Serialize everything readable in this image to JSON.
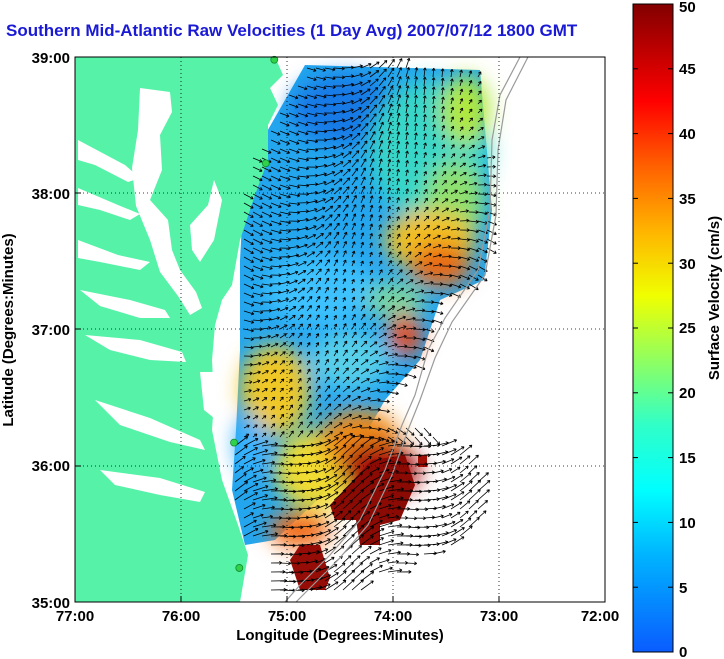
{
  "title": "Southern Mid-Atlantic Raw Velocities (1 Day Avg) 2007/07/12 1800 GMT",
  "x_axis": {
    "label": "Longitude (Degrees:Minutes)",
    "ticks": [
      "77:00",
      "76:00",
      "75:00",
      "74:00",
      "73:00",
      "72:00"
    ]
  },
  "y_axis": {
    "label": "Latitude (Degrees:Minutes)",
    "ticks": [
      "35:00",
      "36:00",
      "37:00",
      "38:00",
      "39:00"
    ]
  },
  "colorbar": {
    "label": "Surface Velocity (cm/s)",
    "ticks": [
      "0",
      "5",
      "10",
      "15",
      "20",
      "25",
      "30",
      "35",
      "40",
      "45",
      "50"
    ],
    "min": 0,
    "max": 50,
    "colormap": "jet"
  },
  "colors": {
    "land": "#55f2a8",
    "ocean": "#ffffff",
    "title": "#1a1ad6",
    "bathymetry": "#9a9a9a",
    "station": "#2fd24a",
    "vectors": "#000000"
  },
  "map": {
    "lon_range": [
      -77,
      -72
    ],
    "lat_range": [
      35,
      39
    ],
    "grid": "dotted",
    "stations": [
      {
        "lon": -75.12,
        "lat": 38.98
      },
      {
        "lon": -75.2,
        "lat": 38.22
      },
      {
        "lon": -75.5,
        "lat": 36.17
      },
      {
        "lon": -75.45,
        "lat": 35.25
      }
    ]
  }
}
